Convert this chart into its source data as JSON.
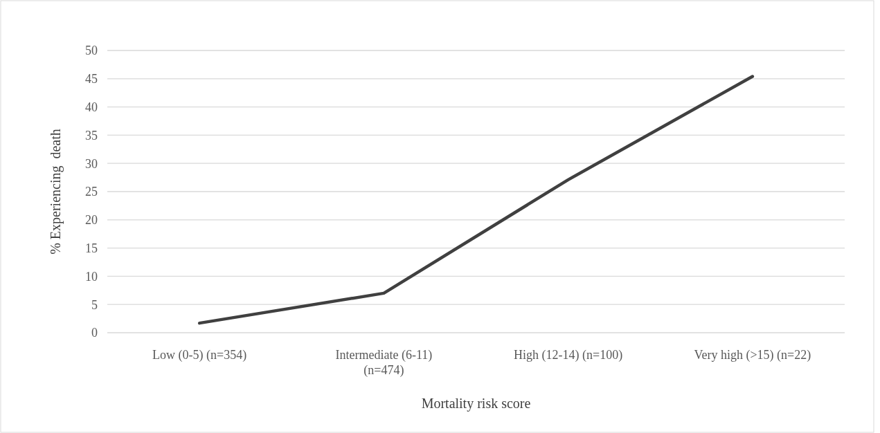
{
  "chart_data": {
    "type": "line",
    "xlabel": "Mortality risk score",
    "ylabel": "% Experiencing  death",
    "categories": [
      "Low (0-5) (n=354)",
      "Intermediate (6-11) (n=474)",
      "High (12-14) (n=100)",
      "Very high (>15) (n=22)"
    ],
    "series": [
      {
        "color": "#404040",
        "values": [
          1.7,
          7.0,
          27.1,
          45.4
        ]
      }
    ],
    "ylim": [
      0,
      50
    ],
    "yticks": [
      0,
      5,
      10,
      15,
      20,
      25,
      30,
      35,
      40,
      45,
      50
    ],
    "grid": "y",
    "marker": "none",
    "line_style": "solid"
  }
}
